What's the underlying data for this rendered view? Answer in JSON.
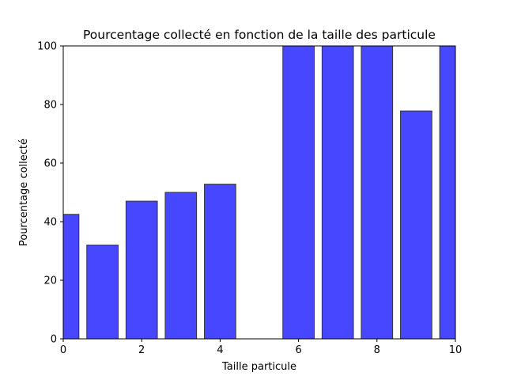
{
  "chart_data": {
    "type": "bar",
    "title": "Pourcentage collecté en fonction de la taille des particule",
    "xlabel": "Taille particule",
    "ylabel": "Pourcentage collecté",
    "x": [
      0,
      1,
      2,
      3,
      4,
      5,
      6,
      7,
      8,
      9,
      10
    ],
    "values": [
      42.5,
      32,
      47,
      50,
      52.8,
      0,
      100,
      100,
      100,
      77.8,
      100
    ],
    "bar_width": 0.8,
    "xlim": [
      0,
      10
    ],
    "ylim": [
      0,
      100
    ],
    "xticks": [
      0,
      2,
      4,
      6,
      8,
      10
    ],
    "yticks": [
      0,
      20,
      40,
      60,
      80,
      100
    ],
    "bar_color": "#4747ff",
    "bar_edge_color": "#333333",
    "grid": false
  }
}
